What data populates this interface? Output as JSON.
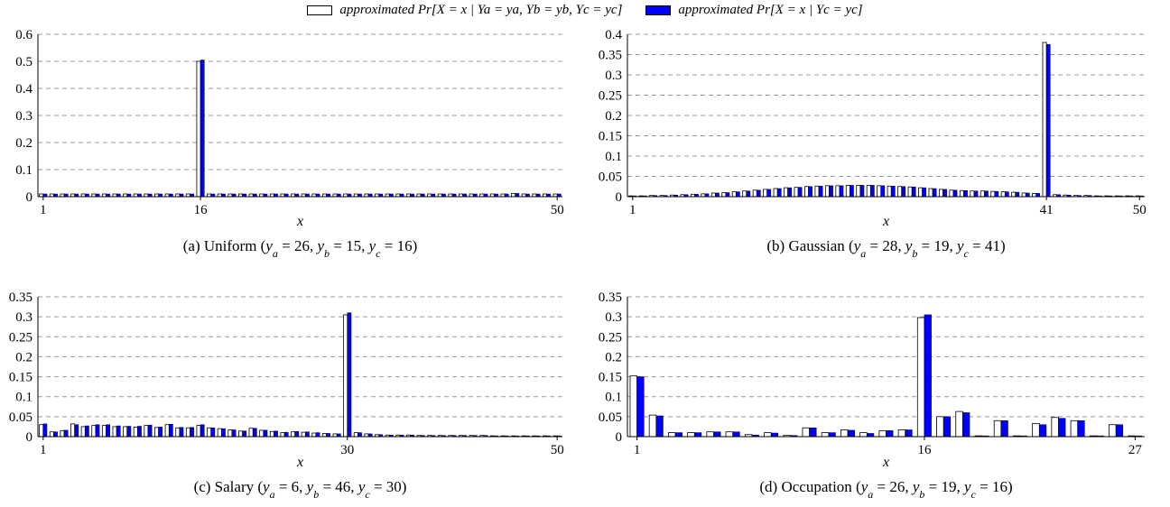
{
  "legend": {
    "a_label": "approximated Pr[X = x | Ya = ya, Yb = yb, Yc = yc]",
    "b_label": "approximated Pr[X = x | Yc = yc]"
  },
  "colors": {
    "a": "#ffffff",
    "b": "#0000ff",
    "grid": "#999999"
  },
  "chart_data": [
    {
      "type": "bar",
      "caption": "(a) Uniform (ya = 26, yb = 15, yc = 16)",
      "xlabel": "x",
      "ylim": [
        0,
        0.6
      ],
      "yticks": [
        "0",
        "0.1",
        "0.2",
        "0.3",
        "0.4",
        "0.5",
        "0.6"
      ],
      "xticks": [
        1,
        16,
        50
      ],
      "x": [
        1,
        2,
        3,
        4,
        5,
        6,
        7,
        8,
        9,
        10,
        11,
        12,
        13,
        14,
        15,
        16,
        17,
        18,
        19,
        20,
        21,
        22,
        23,
        24,
        25,
        26,
        27,
        28,
        29,
        30,
        31,
        32,
        33,
        34,
        35,
        36,
        37,
        38,
        39,
        40,
        41,
        42,
        43,
        44,
        45,
        46,
        47,
        48,
        49,
        50
      ],
      "series": [
        {
          "name": "approximated Pr[X = x | Ya = ya, Yb = yb, Yc = yc]",
          "values": [
            0.01,
            0.01,
            0.01,
            0.01,
            0.01,
            0.01,
            0.01,
            0.01,
            0.01,
            0.01,
            0.01,
            0.01,
            0.01,
            0.01,
            0.01,
            0.5,
            0.01,
            0.01,
            0.01,
            0.01,
            0.01,
            0.01,
            0.01,
            0.01,
            0.01,
            0.01,
            0.01,
            0.01,
            0.01,
            0.01,
            0.01,
            0.01,
            0.01,
            0.01,
            0.01,
            0.01,
            0.01,
            0.01,
            0.01,
            0.01,
            0.01,
            0.01,
            0.01,
            0.01,
            0.01,
            0.012,
            0.01,
            0.01,
            0.01,
            0.01
          ]
        },
        {
          "name": "approximated Pr[X = x | Yc = yc]",
          "values": [
            0.01,
            0.01,
            0.01,
            0.01,
            0.01,
            0.01,
            0.01,
            0.01,
            0.01,
            0.01,
            0.01,
            0.01,
            0.01,
            0.01,
            0.01,
            0.505,
            0.01,
            0.01,
            0.01,
            0.01,
            0.01,
            0.01,
            0.01,
            0.01,
            0.01,
            0.01,
            0.01,
            0.01,
            0.01,
            0.01,
            0.01,
            0.01,
            0.01,
            0.01,
            0.01,
            0.01,
            0.01,
            0.01,
            0.01,
            0.01,
            0.01,
            0.01,
            0.01,
            0.01,
            0.01,
            0.012,
            0.01,
            0.01,
            0.01,
            0.01
          ]
        }
      ]
    },
    {
      "type": "bar",
      "caption": "(b) Gaussian (ya = 28, yb = 19, yc = 41)",
      "xlabel": "x",
      "ylim": [
        0,
        0.4
      ],
      "yticks": [
        "0",
        "0.05",
        "0.1",
        "0.15",
        "0.2",
        "0.25",
        "0.3",
        "0.35",
        "0.4"
      ],
      "xticks": [
        1,
        41,
        50
      ],
      "x": [
        1,
        2,
        3,
        4,
        5,
        6,
        7,
        8,
        9,
        10,
        11,
        12,
        13,
        14,
        15,
        16,
        17,
        18,
        19,
        20,
        21,
        22,
        23,
        24,
        25,
        26,
        27,
        28,
        29,
        30,
        31,
        32,
        33,
        34,
        35,
        36,
        37,
        38,
        39,
        40,
        41,
        42,
        43,
        44,
        45,
        46,
        47,
        48,
        49,
        50
      ],
      "series": [
        {
          "name": "approximated Pr[X = x | Ya = ya, Yb = yb, Yc = yc]",
          "values": [
            0.002,
            0.002,
            0.003,
            0.003,
            0.004,
            0.005,
            0.006,
            0.007,
            0.009,
            0.01,
            0.012,
            0.014,
            0.016,
            0.018,
            0.02,
            0.022,
            0.023,
            0.025,
            0.026,
            0.027,
            0.027,
            0.028,
            0.028,
            0.028,
            0.027,
            0.026,
            0.025,
            0.024,
            0.022,
            0.02,
            0.018,
            0.016,
            0.015,
            0.014,
            0.014,
            0.013,
            0.012,
            0.011,
            0.009,
            0.008,
            0.38,
            0.005,
            0.004,
            0.003,
            0.003,
            0.002,
            0.002,
            0.002,
            0.002,
            0.002
          ]
        },
        {
          "name": "approximated Pr[X = x | Yc = yc]",
          "values": [
            0.002,
            0.002,
            0.003,
            0.003,
            0.004,
            0.005,
            0.006,
            0.007,
            0.009,
            0.01,
            0.012,
            0.014,
            0.016,
            0.018,
            0.02,
            0.022,
            0.023,
            0.025,
            0.026,
            0.027,
            0.027,
            0.028,
            0.028,
            0.028,
            0.027,
            0.026,
            0.025,
            0.024,
            0.022,
            0.02,
            0.018,
            0.016,
            0.015,
            0.014,
            0.014,
            0.013,
            0.012,
            0.011,
            0.009,
            0.008,
            0.375,
            0.005,
            0.004,
            0.003,
            0.003,
            0.002,
            0.002,
            0.002,
            0.002,
            0.002
          ]
        }
      ]
    },
    {
      "type": "bar",
      "caption": "(c) Salary (ya = 6, yb = 46, yc = 30)",
      "xlabel": "x",
      "ylim": [
        0,
        0.35
      ],
      "yticks": [
        "0",
        "0.05",
        "0.1",
        "0.15",
        "0.2",
        "0.25",
        "0.3",
        "0.35"
      ],
      "xticks": [
        1,
        30,
        50
      ],
      "x": [
        1,
        2,
        3,
        4,
        5,
        6,
        7,
        8,
        9,
        10,
        11,
        12,
        13,
        14,
        15,
        16,
        17,
        18,
        19,
        20,
        21,
        22,
        23,
        24,
        25,
        26,
        27,
        28,
        29,
        30,
        31,
        32,
        33,
        34,
        35,
        36,
        37,
        38,
        39,
        40,
        41,
        42,
        43,
        44,
        45,
        46,
        47,
        48,
        49,
        50
      ],
      "series": [
        {
          "name": "approximated Pr[X = x | Ya = ya, Yb = yb, Yc = yc]",
          "values": [
            0.03,
            0.012,
            0.015,
            0.032,
            0.025,
            0.028,
            0.028,
            0.025,
            0.025,
            0.024,
            0.028,
            0.023,
            0.03,
            0.022,
            0.022,
            0.028,
            0.022,
            0.02,
            0.017,
            0.014,
            0.021,
            0.016,
            0.013,
            0.01,
            0.012,
            0.011,
            0.009,
            0.008,
            0.007,
            0.305,
            0.01,
            0.007,
            0.005,
            0.004,
            0.004,
            0.004,
            0.003,
            0.003,
            0.003,
            0.003,
            0.003,
            0.003,
            0.003,
            0.002,
            0.002,
            0.002,
            0.002,
            0.002,
            0.002,
            0.002
          ]
        },
        {
          "name": "approximated Pr[X = x | Yc = yc]",
          "values": [
            0.032,
            0.012,
            0.016,
            0.03,
            0.027,
            0.03,
            0.03,
            0.027,
            0.026,
            0.026,
            0.029,
            0.024,
            0.031,
            0.023,
            0.023,
            0.03,
            0.022,
            0.02,
            0.017,
            0.014,
            0.021,
            0.016,
            0.014,
            0.011,
            0.013,
            0.012,
            0.01,
            0.008,
            0.007,
            0.31,
            0.01,
            0.007,
            0.005,
            0.004,
            0.004,
            0.004,
            0.003,
            0.003,
            0.003,
            0.003,
            0.003,
            0.003,
            0.003,
            0.002,
            0.002,
            0.002,
            0.002,
            0.002,
            0.002,
            0.002
          ]
        }
      ]
    },
    {
      "type": "bar",
      "caption": "(d) Occupation (ya = 26, yb = 19, yc = 16)",
      "xlabel": "x",
      "ylim": [
        0,
        0.35
      ],
      "yticks": [
        "0",
        "0.05",
        "0.1",
        "0.15",
        "0.2",
        "0.25",
        "0.3",
        "0.35"
      ],
      "xticks": [
        1,
        16,
        27
      ],
      "x": [
        1,
        2,
        3,
        4,
        5,
        6,
        7,
        8,
        9,
        10,
        11,
        12,
        13,
        14,
        15,
        16,
        17,
        18,
        19,
        20,
        21,
        22,
        23,
        24,
        25,
        26,
        27
      ],
      "series": [
        {
          "name": "approximated Pr[X = x | Ya = ya, Yb = yb, Yc = yc]",
          "values": [
            0.152,
            0.054,
            0.01,
            0.01,
            0.012,
            0.012,
            0.005,
            0.01,
            0.003,
            0.022,
            0.01,
            0.017,
            0.01,
            0.015,
            0.017,
            0.298,
            0.05,
            0.063,
            0.002,
            0.04,
            0.002,
            0.033,
            0.048,
            0.04,
            0.002,
            0.03,
            0.002
          ]
        },
        {
          "name": "approximated Pr[X = x | Yc = yc]",
          "values": [
            0.15,
            0.052,
            0.01,
            0.01,
            0.012,
            0.012,
            0.004,
            0.009,
            0.003,
            0.022,
            0.01,
            0.016,
            0.008,
            0.015,
            0.017,
            0.305,
            0.05,
            0.06,
            0.002,
            0.04,
            0.002,
            0.03,
            0.046,
            0.04,
            0.002,
            0.03,
            0.002
          ]
        }
      ]
    }
  ]
}
